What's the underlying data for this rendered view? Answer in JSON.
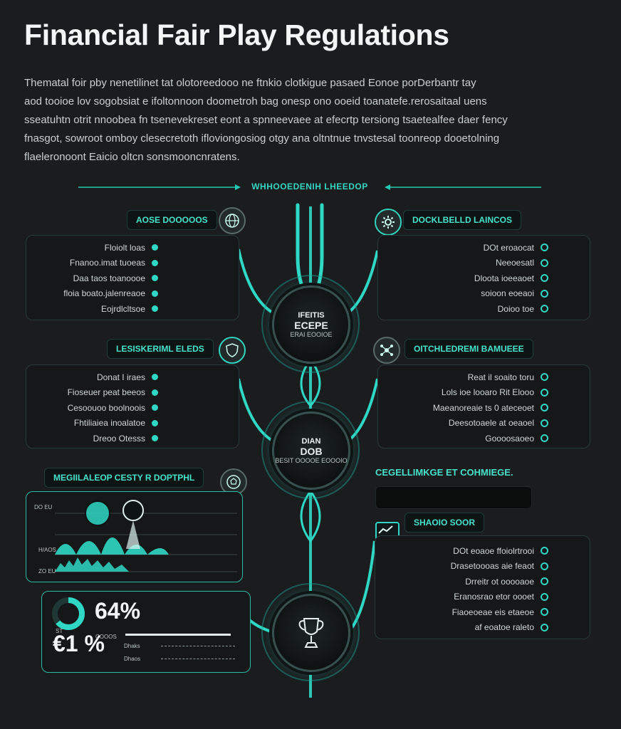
{
  "title": "Financial Fair Play Regulations",
  "intro_lines": [
    "Thematal foir pby nenetilinet tat olotoreedooo ne ftnkio clotkigue pasaed Eonoe porDerbantr tay",
    "aod tooioe lov sogobsiat e ifoltonnoon doometroh bag onesp ono ooeid toanatefe.rerosaitaal uens",
    "sseatuhtn otrit nnoobea fn tsenevekreset eont a spnneevaee at efecrtp tersiong tsaetealfee daer fency",
    "fnasgot, sowroot omboy clesecretoth ifloviongosiog otgy ana oltntnue tnvstesal toonreop dooetolning",
    "flaeleronoont Eaicio oltcn sonsmooncnratens."
  ],
  "section_header": "WHHOOEDENIH LHEEDOP",
  "left_groups": [
    {
      "heading": "AOSE DOOOOOS",
      "icon": "globe-icon",
      "items": [
        "Floiolt loas",
        "Fnanoo.imat tuoeas",
        "Daa taos toanoooe",
        "floia boato.jalenreaoe",
        "Eojrdlcltsoe"
      ]
    },
    {
      "heading": "LESISKERIML ELEDS",
      "icon": "shield-icon",
      "items": [
        "Donat I iraes",
        "Fioseuer peat beeos",
        "Cesoouoo boolnoois",
        "Fhtiliaiea inoalatoe",
        "Dreoo Otesss"
      ]
    }
  ],
  "right_groups": [
    {
      "heading": "DOCKLBELLD LAINCOS",
      "icon": "gear-icon",
      "items": [
        "DOt eroaocat",
        "Neeoesatl",
        "Dloota ioeeaoet",
        "soioon eoeaoi",
        "Doioo toe"
      ]
    },
    {
      "heading": "OITCHLEDREMI BAMUEEE",
      "icon": "network-icon",
      "items": [
        "Reat il soaito toru",
        "Lols ioe looaro Rit Elooo",
        "Maeanoreaie ts 0 ateceoet",
        "Deesotoaele at oeaoel",
        "Goooosaoeo"
      ]
    },
    {
      "heading": "SHAOIO SOOR",
      "icon": "chart-icon",
      "items": [
        "DOt eoaoe ffoiolrtrooi",
        "Drasetoooas aie feaot",
        "Drreitr ot ooooaoe",
        "Eranosrao etor oooet",
        "Fiaoeoeae eis etaeoe",
        "af eoatoe raleto"
      ]
    }
  ],
  "hubs": [
    {
      "line1": "IFEITIS",
      "line2": "ECEPE",
      "line3": "ERAI EOOIOE"
    },
    {
      "line1": "DIAN",
      "line2": "DOB",
      "line3": "BESIT OOOOE EOOOIO"
    },
    {
      "line1": "",
      "line2": "",
      "line3": ""
    }
  ],
  "analysis_heading": "MEGIILALEOP CESTY R DOPTPHL",
  "monitor_heading": "CEGELLIMKGE ET COHMIEGE.",
  "chart_labels": {
    "top": "DO EU",
    "mid": "H/AOS",
    "bottom": "ZO EU"
  },
  "kpi": {
    "big_value": "64%",
    "big_fraction": 0.64,
    "small_value": "€1 %",
    "small_caption": "ST",
    "small_label": "COOOS",
    "row1": "Dhaks",
    "row2": "Dhaos"
  },
  "colors": {
    "accent": "#2fd8c4",
    "background": "#1b1c1e",
    "panel": "#161718"
  }
}
